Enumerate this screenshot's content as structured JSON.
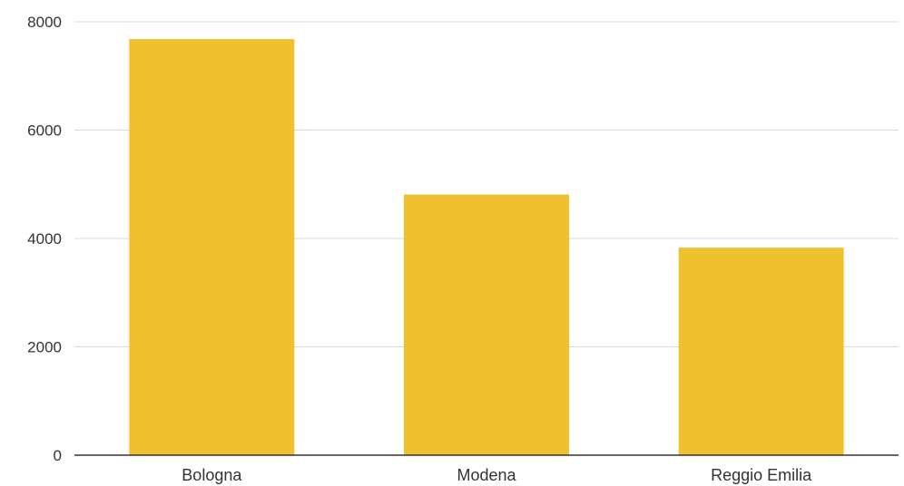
{
  "chart_data": {
    "type": "bar",
    "title": "",
    "xlabel": "",
    "ylabel": "",
    "categories": [
      "Bologna",
      "Modena",
      "Reggio Emilia"
    ],
    "values": [
      7680,
      4810,
      3830
    ],
    "ylim": [
      0,
      8000
    ],
    "yticks": [
      0,
      2000,
      4000,
      6000,
      8000
    ],
    "ytick_labels": [
      "0",
      "2000",
      "4000",
      "6000",
      "8000"
    ],
    "grid": true,
    "legend": "none",
    "colors": {
      "bar": "#F0C12F",
      "grid": "#D9D9D9",
      "baseline": "#333333"
    }
  }
}
